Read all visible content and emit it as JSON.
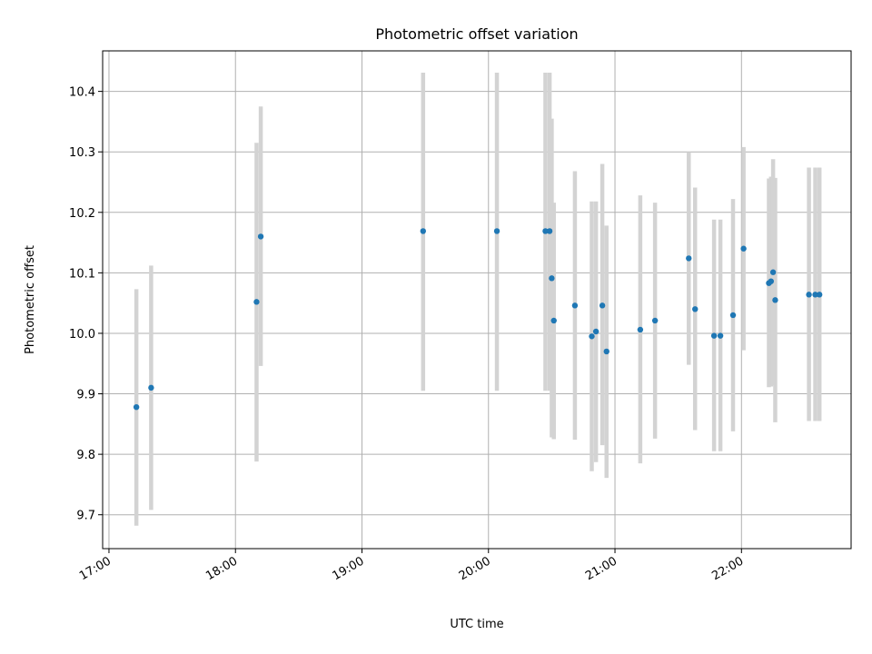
{
  "chart_data": {
    "type": "scatter",
    "title": "Photometric offset variation",
    "xlabel": "UTC time",
    "ylabel": "Photometric offset",
    "x_ticks": [
      "17:00",
      "18:00",
      "19:00",
      "20:00",
      "21:00",
      "22:00"
    ],
    "y_ticks": [
      "9.7",
      "9.8",
      "9.9",
      "10.0",
      "10.1",
      "10.2",
      "10.3",
      "10.4"
    ],
    "xlim": [
      "16:57",
      "22:52"
    ],
    "ylim": [
      9.644,
      10.467
    ],
    "grid": true,
    "point_color": "#1f77b4",
    "errorbar_color": "#d3d3d3",
    "points": [
      {
        "time": "17:13",
        "y": 9.878,
        "lo": 9.682,
        "hi": 10.073
      },
      {
        "time": "17:20",
        "y": 9.91,
        "lo": 9.708,
        "hi": 10.112
      },
      {
        "time": "18:10",
        "y": 10.052,
        "lo": 9.788,
        "hi": 10.315
      },
      {
        "time": "18:12",
        "y": 10.16,
        "lo": 9.946,
        "hi": 10.375
      },
      {
        "time": "19:29",
        "y": 10.169,
        "lo": 9.905,
        "hi": 10.431
      },
      {
        "time": "20:04",
        "y": 10.169,
        "lo": 9.905,
        "hi": 10.431
      },
      {
        "time": "20:27",
        "y": 10.169,
        "lo": 9.905,
        "hi": 10.431
      },
      {
        "time": "20:29",
        "y": 10.169,
        "lo": 9.905,
        "hi": 10.431
      },
      {
        "time": "20:30",
        "y": 10.091,
        "lo": 9.828,
        "hi": 10.355
      },
      {
        "time": "20:31",
        "y": 10.021,
        "lo": 9.825,
        "hi": 10.216
      },
      {
        "time": "20:41",
        "y": 10.046,
        "lo": 9.824,
        "hi": 10.268
      },
      {
        "time": "20:49",
        "y": 9.995,
        "lo": 9.772,
        "hi": 10.218
      },
      {
        "time": "20:51",
        "y": 10.003,
        "lo": 9.787,
        "hi": 10.218
      },
      {
        "time": "20:54",
        "y": 10.046,
        "lo": 9.815,
        "hi": 10.28
      },
      {
        "time": "20:56",
        "y": 9.97,
        "lo": 9.761,
        "hi": 10.178
      },
      {
        "time": "21:12",
        "y": 10.006,
        "lo": 9.785,
        "hi": 10.228
      },
      {
        "time": "21:19",
        "y": 10.021,
        "lo": 9.826,
        "hi": 10.216
      },
      {
        "time": "21:35",
        "y": 10.124,
        "lo": 9.948,
        "hi": 10.3
      },
      {
        "time": "21:38",
        "y": 10.04,
        "lo": 9.84,
        "hi": 10.241
      },
      {
        "time": "21:47",
        "y": 9.996,
        "lo": 9.805,
        "hi": 10.188
      },
      {
        "time": "21:50",
        "y": 9.996,
        "lo": 9.805,
        "hi": 10.188
      },
      {
        "time": "21:56",
        "y": 10.03,
        "lo": 9.838,
        "hi": 10.222
      },
      {
        "time": "22:01",
        "y": 10.14,
        "lo": 9.972,
        "hi": 10.308
      },
      {
        "time": "22:13",
        "y": 10.083,
        "lo": 9.911,
        "hi": 10.256
      },
      {
        "time": "22:14",
        "y": 10.086,
        "lo": 9.912,
        "hi": 10.259
      },
      {
        "time": "22:15",
        "y": 10.101,
        "lo": 9.914,
        "hi": 10.288
      },
      {
        "time": "22:16",
        "y": 10.055,
        "lo": 9.853,
        "hi": 10.257
      },
      {
        "time": "22:32",
        "y": 10.064,
        "lo": 9.855,
        "hi": 10.274
      },
      {
        "time": "22:35",
        "y": 10.064,
        "lo": 9.855,
        "hi": 10.274
      },
      {
        "time": "22:37",
        "y": 10.064,
        "lo": 9.855,
        "hi": 10.274
      }
    ]
  }
}
